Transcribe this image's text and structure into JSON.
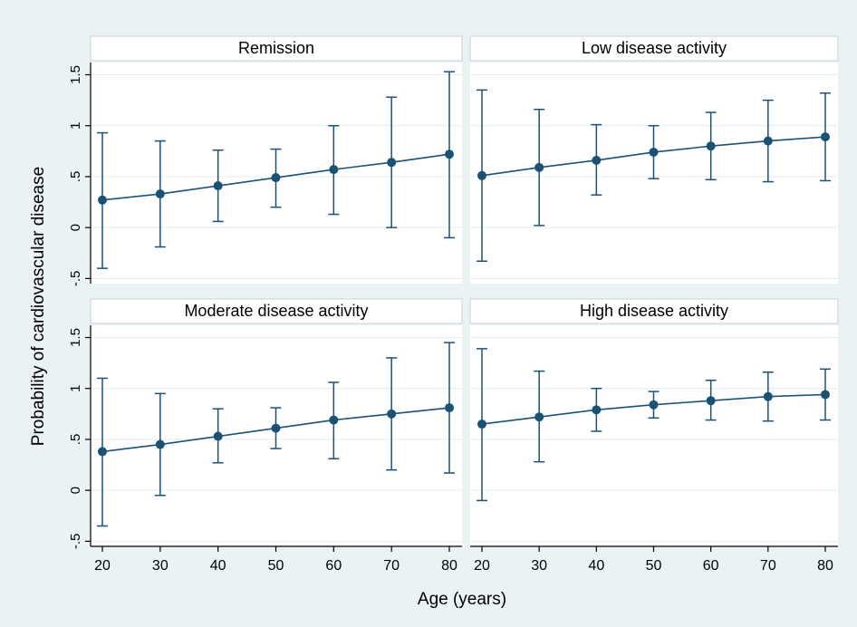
{
  "chart_data": {
    "type": "scatter",
    "layout": "2x2 facets, shared axes, points with 95% CI error bars connected by a line",
    "xlabel": "Age (years)",
    "ylabel": "Probability of cardiovascular disease",
    "x_ticks": [
      "20",
      "30",
      "40",
      "50",
      "60",
      "70",
      "80"
    ],
    "y_ticks": [
      "-.5",
      "0",
      ".5",
      "1",
      "1.5"
    ],
    "y_tick_values": [
      -0.5,
      0,
      0.5,
      1,
      1.5
    ],
    "xlim": [
      20,
      80
    ],
    "ylim": [
      -0.55,
      1.62
    ],
    "grid": "horizontal",
    "colors": {
      "series": "#1a5276",
      "panel_bg": "#ffffff",
      "figure_bg": "#eaf2f3",
      "grid": "#e6ecee",
      "strip_border": "#c8d1d4"
    },
    "x": [
      20,
      30,
      40,
      50,
      60,
      70,
      80
    ],
    "panels": [
      {
        "title": "Remission",
        "y": [
          0.27,
          0.33,
          0.41,
          0.49,
          0.57,
          0.64,
          0.72
        ],
        "lower": [
          -0.4,
          -0.19,
          0.06,
          0.2,
          0.13,
          0.0,
          -0.1
        ],
        "upper": [
          0.93,
          0.85,
          0.76,
          0.77,
          1.0,
          1.28,
          1.53
        ]
      },
      {
        "title": "Low disease activity",
        "y": [
          0.51,
          0.59,
          0.66,
          0.74,
          0.8,
          0.85,
          0.89
        ],
        "lower": [
          -0.33,
          0.02,
          0.32,
          0.48,
          0.47,
          0.45,
          0.46
        ],
        "upper": [
          1.35,
          1.16,
          1.01,
          1.0,
          1.13,
          1.25,
          1.32
        ]
      },
      {
        "title": "Moderate disease activity",
        "y": [
          0.38,
          0.45,
          0.53,
          0.61,
          0.69,
          0.75,
          0.81
        ],
        "lower": [
          -0.35,
          -0.05,
          0.27,
          0.41,
          0.31,
          0.2,
          0.17
        ],
        "upper": [
          1.1,
          0.95,
          0.8,
          0.81,
          1.06,
          1.3,
          1.45
        ]
      },
      {
        "title": "High disease activity",
        "y": [
          0.65,
          0.72,
          0.79,
          0.84,
          0.88,
          0.92,
          0.94
        ],
        "lower": [
          -0.1,
          0.28,
          0.58,
          0.71,
          0.69,
          0.68,
          0.69
        ],
        "upper": [
          1.39,
          1.17,
          1.0,
          0.97,
          1.08,
          1.16,
          1.19
        ]
      }
    ]
  }
}
